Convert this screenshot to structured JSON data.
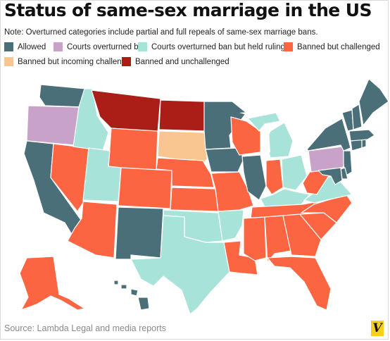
{
  "title": "Status of same-sex marriage in the US",
  "note": "Note: Overturned categories include partial and full repeals of same-sex marriage bans.",
  "legend": [
    {
      "key": "allowed",
      "label": "Allowed",
      "color": "#4a6f79"
    },
    {
      "key": "overturned",
      "label": "Courts overturned ban",
      "color": "#c8a2c8"
    },
    {
      "key": "held",
      "label": "Courts overturned ban but held ruling",
      "color": "#a7e3d8"
    },
    {
      "key": "challenged",
      "label": "Banned but challenged",
      "color": "#fb6541"
    },
    {
      "key": "incoming",
      "label": "Banned but incoming challenge",
      "color": "#f9c590"
    },
    {
      "key": "unchallenged",
      "label": "Banned and unchallenged",
      "color": "#aa1e17"
    }
  ],
  "states": {
    "WA": "allowed",
    "OR": "overturned",
    "CA": "allowed",
    "NV": "challenged",
    "ID": "held",
    "MT": "unchallenged",
    "WY": "challenged",
    "UT": "held",
    "AZ": "challenged",
    "CO": "challenged",
    "NM": "allowed",
    "ND": "unchallenged",
    "SD": "incoming",
    "NE": "challenged",
    "KS": "challenged",
    "OK": "held",
    "TX": "held",
    "MN": "allowed",
    "IA": "allowed",
    "MO": "challenged",
    "AR": "held",
    "LA": "challenged",
    "WI": "challenged",
    "IL": "allowed",
    "MI": "held",
    "IN": "challenged",
    "OH": "held",
    "KY": "held",
    "TN": "challenged",
    "MS": "challenged",
    "AL": "challenged",
    "GA": "challenged",
    "FL": "challenged",
    "SC": "challenged",
    "NC": "challenged",
    "VA": "held",
    "WV": "challenged",
    "PA": "overturned",
    "NY": "allowed",
    "NJ": "allowed",
    "DE": "allowed",
    "MD": "allowed",
    "CT": "allowed",
    "RI": "allowed",
    "MA": "allowed",
    "VT": "allowed",
    "NH": "allowed",
    "ME": "allowed",
    "AK": "challenged",
    "HI": "allowed"
  },
  "source": "Source: Lambda Legal and media reports",
  "logo": "V"
}
